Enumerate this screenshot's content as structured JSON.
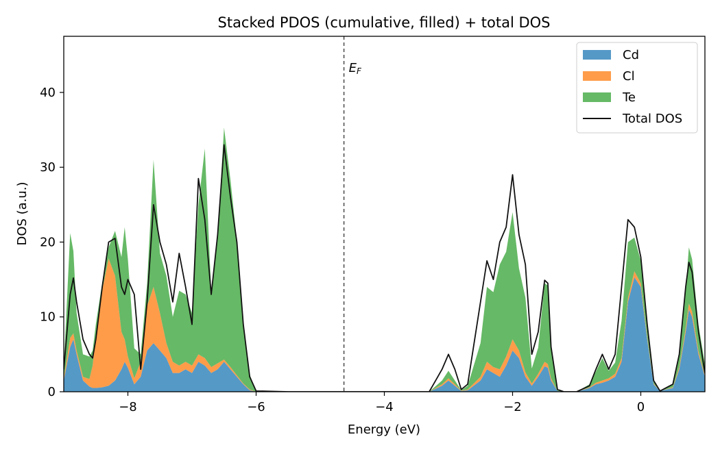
{
  "chart_data": {
    "type": "area",
    "stacked": true,
    "title": "Stacked PDOS (cumulative, filled) + total DOS",
    "xlabel": "Energy (eV)",
    "ylabel": "DOS (a.u.)",
    "xlim": [
      -9.0,
      1.0
    ],
    "ylim": [
      0,
      47.5
    ],
    "xticks": [
      -8,
      -6,
      -4,
      -2,
      0
    ],
    "yticks": [
      0,
      10,
      20,
      30,
      40
    ],
    "fermi_level": {
      "energy": -4.63,
      "label_main": "E",
      "label_sub": "F"
    },
    "legend": {
      "position": "top-right"
    },
    "x": [
      -9.0,
      -8.9,
      -8.85,
      -8.8,
      -8.7,
      -8.6,
      -8.55,
      -8.5,
      -8.4,
      -8.3,
      -8.2,
      -8.1,
      -8.05,
      -8.0,
      -7.9,
      -7.8,
      -7.7,
      -7.6,
      -7.5,
      -7.4,
      -7.3,
      -7.2,
      -7.1,
      -7.0,
      -6.9,
      -6.8,
      -6.7,
      -6.6,
      -6.5,
      -6.4,
      -6.3,
      -6.2,
      -6.1,
      -6.0,
      -5.5,
      -3.3,
      -3.1,
      -3.0,
      -2.9,
      -2.8,
      -2.7,
      -2.5,
      -2.4,
      -2.3,
      -2.2,
      -2.1,
      -2.0,
      -1.9,
      -1.8,
      -1.7,
      -1.6,
      -1.5,
      -1.45,
      -1.4,
      -1.3,
      -1.2,
      -1.0,
      -0.8,
      -0.7,
      -0.6,
      -0.5,
      -0.4,
      -0.3,
      -0.2,
      -0.1,
      0.0,
      0.1,
      0.2,
      0.3,
      0.5,
      0.6,
      0.7,
      0.75,
      0.8,
      0.9,
      1.0
    ],
    "series": [
      {
        "name": "Cd",
        "color": "#5599c7",
        "values": [
          1.5,
          6.0,
          7.0,
          5.0,
          1.5,
          0.7,
          0.5,
          0.5,
          0.6,
          0.8,
          1.5,
          3.0,
          4.0,
          3.2,
          1.0,
          2.0,
          5.5,
          6.5,
          5.5,
          4.5,
          2.5,
          2.5,
          3.0,
          2.5,
          4.0,
          3.5,
          2.5,
          3.0,
          4.0,
          3.0,
          2.0,
          1.0,
          0.2,
          0,
          0,
          0,
          0.8,
          1.5,
          0.8,
          0.1,
          0.2,
          1.5,
          3.0,
          2.5,
          2.0,
          3.5,
          5.5,
          4.5,
          2.0,
          0.8,
          2.0,
          3.4,
          3.2,
          1.5,
          0.1,
          0,
          0,
          0.5,
          1.0,
          1.2,
          1.5,
          2.0,
          4.0,
          12.0,
          15.3,
          14.0,
          7.0,
          1.0,
          0.1,
          0.5,
          3.0,
          8.0,
          11.0,
          10.0,
          5.0,
          2.0
        ]
      },
      {
        "name": "Cl",
        "color": "#fe9c4a",
        "values": [
          0.3,
          1.2,
          0.8,
          0.5,
          0.5,
          1.0,
          3.0,
          7.0,
          13.0,
          17.0,
          14.0,
          5.0,
          3.0,
          1.5,
          0.8,
          2.0,
          6.0,
          7.5,
          5.0,
          2.0,
          1.5,
          1.0,
          1.0,
          1.0,
          1.0,
          1.0,
          0.8,
          0.8,
          0.3,
          0.3,
          0.2,
          0.1,
          0.1,
          0,
          0,
          0,
          0.2,
          0.3,
          0.2,
          0.05,
          0.1,
          0.5,
          1.0,
          0.8,
          1.0,
          1.2,
          1.5,
          1.0,
          0.6,
          0.3,
          0.4,
          0.6,
          0.5,
          0.3,
          0,
          0,
          0,
          0.1,
          0.2,
          0.3,
          0.3,
          0.4,
          0.5,
          0.5,
          0.8,
          0.5,
          0.3,
          0.1,
          0,
          0.1,
          0.3,
          0.5,
          0.8,
          0.7,
          0.4,
          0.2
        ]
      },
      {
        "name": "Te",
        "color": "#66b966",
        "values": [
          1.5,
          14.0,
          11.0,
          5.0,
          3.0,
          3.0,
          2.0,
          1.5,
          1.0,
          1.5,
          6.0,
          10.0,
          15.0,
          13.0,
          4.0,
          1.0,
          3.0,
          17.0,
          8.0,
          9.0,
          6.0,
          10.0,
          9.0,
          7.0,
          20.0,
          28.0,
          10.0,
          17.0,
          31.0,
          25.0,
          18.0,
          8.0,
          2.0,
          0.1,
          0,
          0,
          0.5,
          1.0,
          0.5,
          0.05,
          0.5,
          4.5,
          10.0,
          10.0,
          14.0,
          14.0,
          17.0,
          11.0,
          10.0,
          2.0,
          3.5,
          10.5,
          10.5,
          4.0,
          0.1,
          0,
          0,
          0.4,
          1.5,
          3.0,
          1.0,
          1.5,
          5.0,
          7.5,
          4.5,
          3.0,
          2.0,
          0.4,
          0.05,
          0.4,
          1.5,
          5.0,
          7.5,
          7.0,
          3.5,
          1.5
        ]
      },
      {
        "name": "Total DOS",
        "color": "#111111",
        "kind": "line",
        "values": [
          3.0,
          13.0,
          15.2,
          12.0,
          7.0,
          5.0,
          4.5,
          7.0,
          14.0,
          20.0,
          20.5,
          14.0,
          13.0,
          15.0,
          13.0,
          3.0,
          12.0,
          25.0,
          20.0,
          17.0,
          12.0,
          18.5,
          14.0,
          9.0,
          28.5,
          23.0,
          13.0,
          21.0,
          33.0,
          26.0,
          20.0,
          9.0,
          2.0,
          0.1,
          0,
          0,
          3.0,
          5.0,
          3.0,
          0.3,
          1.0,
          12.0,
          17.5,
          15.0,
          20.0,
          22.0,
          29.0,
          21.0,
          17.0,
          5.0,
          8.0,
          14.9,
          14.5,
          6.0,
          0.3,
          0,
          0,
          0.8,
          3.0,
          5.0,
          3.0,
          5.0,
          14.0,
          23.0,
          22.0,
          18.0,
          9.0,
          1.5,
          0.1,
          1.0,
          5.0,
          14.0,
          17.3,
          16.0,
          8.0,
          2.5
        ]
      }
    ]
  }
}
